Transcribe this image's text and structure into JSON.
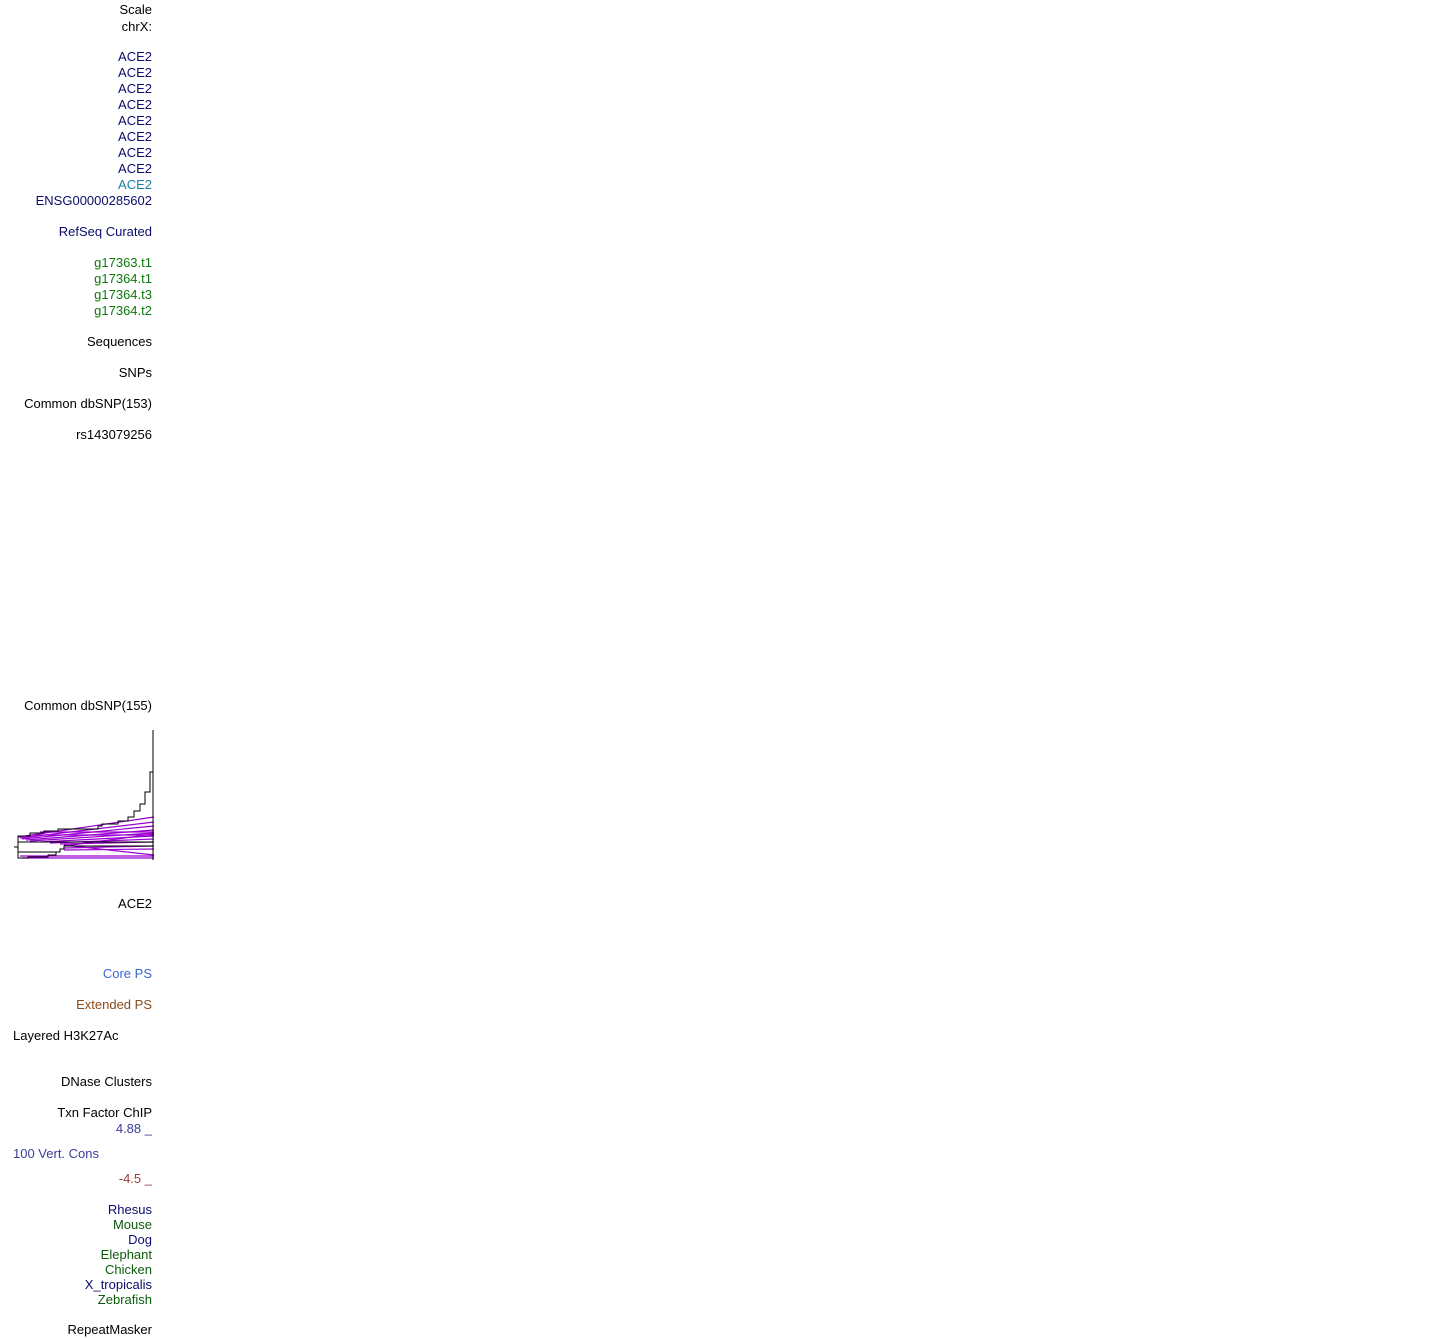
{
  "labels": [
    "Scale",
    "chrX:",
    "ACE2",
    "ACE2",
    "ACE2",
    "ACE2",
    "ACE2",
    "ACE2",
    "ACE2",
    "ACE2",
    "ACE2",
    "ENSG00000285602",
    "RefSeq Curated",
    "g17363.t1",
    "g17364.t1",
    "g17364.t3",
    "g17364.t2",
    "Sequences",
    "SNPs",
    "Common dbSNP(153)",
    "rs143079256",
    "Common dbSNP(155)",
    "ACE2",
    "Core PS",
    "Extended PS",
    "Layered H3K27Ac",
    "DNase Clusters",
    "Txn Factor ChIP",
    "4.88 _",
    "100 Vert. Cons",
    "-4.5 _",
    "Rhesus",
    "Mouse",
    "Dog",
    "Elephant",
    "Chicken",
    "X_tropicalis",
    "Zebrafish",
    "RepeatMasker"
  ]
}
